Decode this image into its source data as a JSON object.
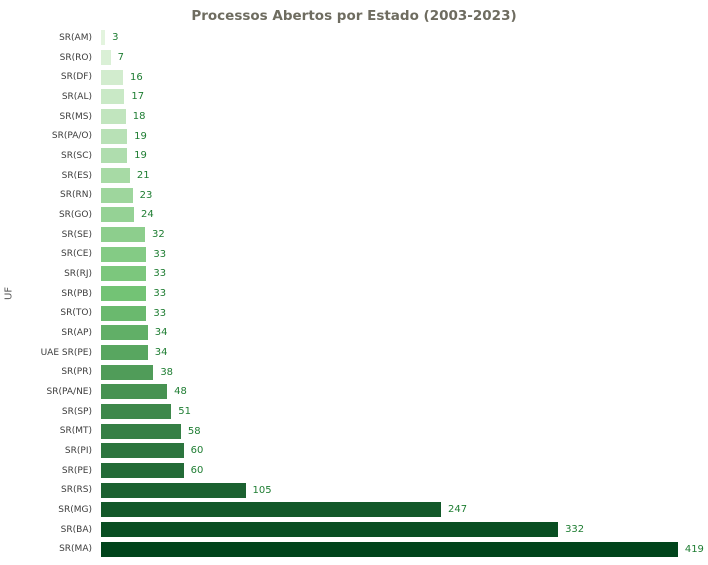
{
  "chart_data": {
    "type": "bar",
    "orientation": "horizontal",
    "title": "Processos Abertos por Estado (2003-2023)",
    "xlabel": "",
    "ylabel": "UF",
    "grid": false,
    "legend": false,
    "xlim": [
      0,
      438
    ],
    "categories": [
      "SR(AM)",
      "SR(RO)",
      "SR(DF)",
      "SR(AL)",
      "SR(MS)",
      "SR(PA/O)",
      "SR(SC)",
      "SR(ES)",
      "SR(RN)",
      "SR(GO)",
      "SR(SE)",
      "SR(CE)",
      "SR(RJ)",
      "SR(PB)",
      "SR(TO)",
      "SR(AP)",
      "UAE SR(PE)",
      "SR(PR)",
      "SR(PA/NE)",
      "SR(SP)",
      "SR(MT)",
      "SR(PI)",
      "SR(PE)",
      "SR(RS)",
      "SR(MG)",
      "SR(BA)",
      "SR(MA)"
    ],
    "values": [
      3,
      7,
      16,
      17,
      18,
      19,
      19,
      21,
      23,
      24,
      32,
      33,
      33,
      33,
      33,
      34,
      34,
      38,
      48,
      51,
      58,
      60,
      60,
      105,
      247,
      332,
      419
    ],
    "colors": {
      "scale": [
        "#e3f4de",
        "#73c375",
        "#00441b"
      ],
      "value_label_color": "#1e7d32",
      "category_label_color": "#3c3c3c",
      "title_color": "#6e6c60",
      "axis_label_color": "#555555",
      "background": "#ffffff"
    }
  }
}
